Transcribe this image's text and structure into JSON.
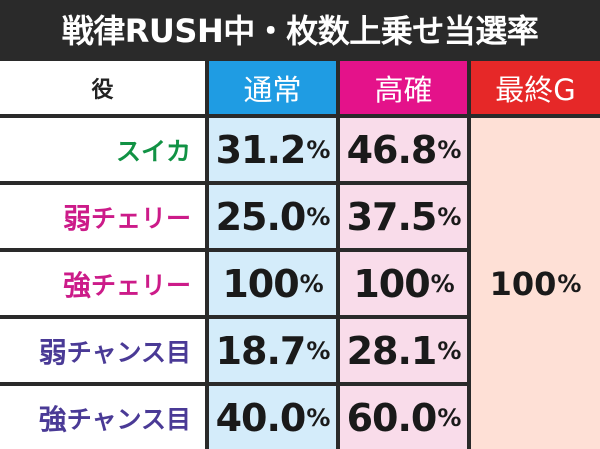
{
  "title": "戦律RUSH中・枚数上乗せ当選率",
  "headers": {
    "role": "役",
    "normal": "通常",
    "kakuritsu": "高確",
    "final": "最終G"
  },
  "rows": [
    {
      "role_prefix": "",
      "role": "スイカ",
      "normal": "31.2",
      "kakuritsu": "46.8",
      "color": "#119244"
    },
    {
      "role_prefix": "弱",
      "role": "チェリー",
      "normal": "25.0",
      "kakuritsu": "37.5",
      "color": "#cc1b89"
    },
    {
      "role_prefix": "強",
      "role": "チェリー",
      "normal": "100",
      "kakuritsu": "100",
      "color": "#cc1b89"
    },
    {
      "role_prefix": "弱",
      "role": "チャンス目",
      "normal": "18.7",
      "kakuritsu": "28.1",
      "color": "#4a3a96"
    },
    {
      "role_prefix": "強",
      "role": "チャンス目",
      "normal": "40.0",
      "kakuritsu": "60.0",
      "color": "#4a3a96"
    }
  ],
  "final_value": "100",
  "percent_sign": "%",
  "colors": {
    "normal_header": "#1f9ce3",
    "kakuritsu_header": "#e4128a",
    "final_header": "#e62828",
    "normal_cell": "#d4ecfa",
    "kakuritsu_cell": "#f9dcea",
    "final_cell": "#fee0d6"
  }
}
